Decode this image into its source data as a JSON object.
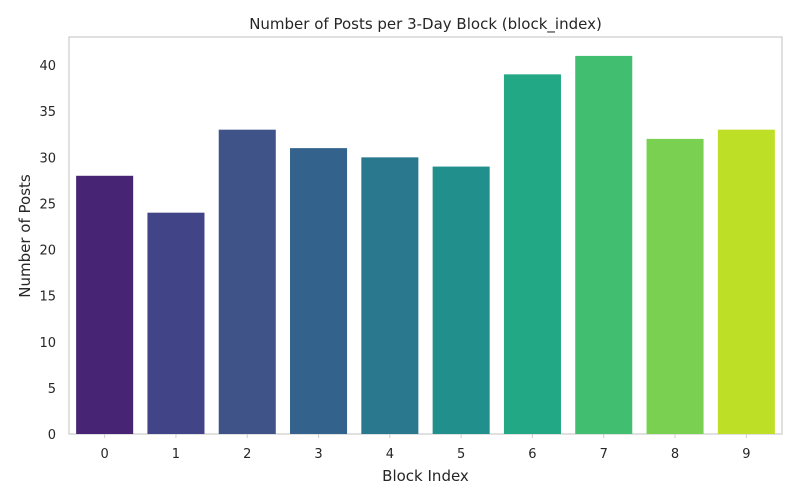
{
  "chart_data": {
    "type": "bar",
    "title": "Number of Posts per 3-Day Block (block_index)",
    "xlabel": "Block Index",
    "ylabel": "Number of Posts",
    "categories": [
      "0",
      "1",
      "2",
      "3",
      "4",
      "5",
      "6",
      "7",
      "8",
      "9"
    ],
    "values": [
      28,
      24,
      33,
      31,
      30,
      29,
      39,
      41,
      32,
      33
    ],
    "ylim": [
      0,
      43.05
    ],
    "yticks": [
      0,
      5,
      10,
      15,
      20,
      25,
      30,
      35,
      40
    ],
    "grid": false,
    "colors": [
      "#482475",
      "#414487",
      "#3f5389",
      "#33638d",
      "#2a788e",
      "#21908d",
      "#22a884",
      "#42be71",
      "#7ad151",
      "#bddf26"
    ]
  }
}
